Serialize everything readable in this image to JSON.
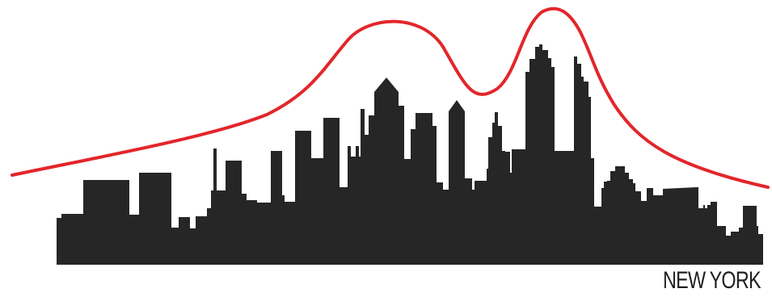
{
  "caption": "NEW YORK",
  "colors": {
    "background": "#ffffff",
    "skyline": "#262626",
    "curve": "#e2262b",
    "caption": "#1f1f1f"
  }
}
